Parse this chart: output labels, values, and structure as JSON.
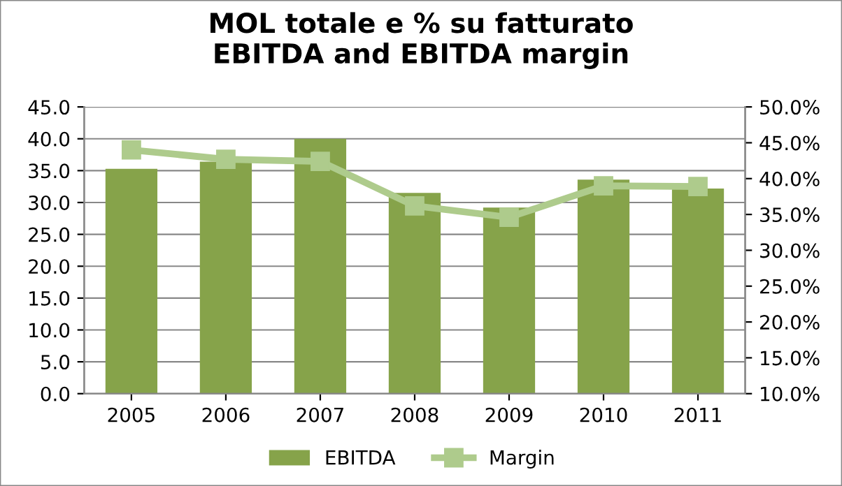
{
  "chart_data": {
    "type": "bar",
    "title": "MOL totale e % su fatturato\nEBITDA and EBITDA margin",
    "categories": [
      "2005",
      "2006",
      "2007",
      "2008",
      "2009",
      "2010",
      "2011"
    ],
    "series": [
      {
        "name": "EBITDA",
        "color": "#86a34a",
        "values": [
          35.3,
          36.4,
          40.0,
          31.5,
          29.2,
          33.6,
          32.2
        ]
      },
      {
        "name": "Margin",
        "type": "line",
        "axis": "y2",
        "color": "#aecb8c",
        "marker": "square",
        "values": [
          44.0,
          42.7,
          42.4,
          36.2,
          34.6,
          39.0,
          38.9
        ]
      }
    ],
    "ylim": [
      0,
      45
    ],
    "yticks": [
      {
        "value": 0,
        "label": "0.0"
      },
      {
        "value": 5,
        "label": "5.0"
      },
      {
        "value": 10,
        "label": "10.0"
      },
      {
        "value": 15,
        "label": "15.0"
      },
      {
        "value": 20,
        "label": "20.0"
      },
      {
        "value": 25,
        "label": "25.0"
      },
      {
        "value": 30,
        "label": "30.0"
      },
      {
        "value": 35,
        "label": "35.0"
      },
      {
        "value": 40,
        "label": "40.0"
      },
      {
        "value": 45,
        "label": "45.0"
      }
    ],
    "y2lim": [
      10,
      50
    ],
    "y2ticks": [
      {
        "value": 10,
        "label": "10.0%"
      },
      {
        "value": 15,
        "label": "15.0%"
      },
      {
        "value": 20,
        "label": "20.0%"
      },
      {
        "value": 25,
        "label": "25.0%"
      },
      {
        "value": 30,
        "label": "30.0%"
      },
      {
        "value": 35,
        "label": "35.0%"
      },
      {
        "value": 40,
        "label": "40.0%"
      },
      {
        "value": 45,
        "label": "45.0%"
      },
      {
        "value": 50,
        "label": "50.0%"
      }
    ],
    "grid": "y",
    "legend": "bottom"
  }
}
